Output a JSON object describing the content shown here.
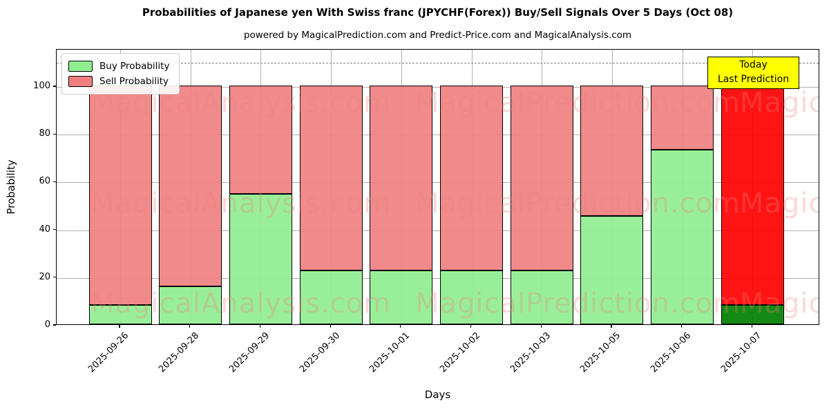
{
  "header": {
    "title": "Probabilities of Japanese yen With Swiss franc (JPYCHF(Forex)) Buy/Sell Signals Over 5 Days (Oct 08)",
    "subtitle": "powered by MagicalPrediction.com and Predict-Price.com and MagicalAnalysis.com"
  },
  "legend": {
    "items": [
      {
        "label": "Buy Probability",
        "color": "#90ee90"
      },
      {
        "label": "Sell Probability",
        "color": "#f08080"
      }
    ]
  },
  "annotation": {
    "line1": "Today",
    "line2": "Last Prediction",
    "bg_color": "#ffff00",
    "border_color": "#000000"
  },
  "watermarks": {
    "col1": "MagicalAnalysis.com",
    "col2": "MagicalPrediction.com"
  },
  "colors": {
    "buy": "#90ee90",
    "sell": "#f08080",
    "today_buy": "#008000",
    "today_sell": "#ff0000",
    "grid": "#b0b0b0",
    "dashed_line": "#7f7f7f",
    "bar_edge": "#000000"
  },
  "chart_data": {
    "type": "bar",
    "stacked": true,
    "title": "Probabilities of Japanese yen With Swiss franc (JPYCHF(Forex)) Buy/Sell Signals Over 5 Days (Oct 08)",
    "subtitle": "powered by MagicalPrediction.com and Predict-Price.com and MagicalAnalysis.com",
    "xlabel": "Days",
    "ylabel": "Probability",
    "categories": [
      "2025-09-26",
      "2025-09-28",
      "2025-09-29",
      "2025-09-30",
      "2025-10-01",
      "2025-10-02",
      "2025-10-03",
      "2025-10-05",
      "2025-10-06",
      "2025-10-07"
    ],
    "series": [
      {
        "name": "Buy Probability",
        "color": "#90ee90",
        "values": [
          8,
          16,
          54.5,
          22.5,
          22.5,
          22.5,
          22.5,
          45.5,
          73,
          8
        ]
      },
      {
        "name": "Sell Probability",
        "color": "#f08080",
        "values": [
          92,
          84,
          45.5,
          77.5,
          77.5,
          77.5,
          77.5,
          54.5,
          27,
          92
        ]
      }
    ],
    "ylim": [
      0,
      115.5
    ],
    "yticks": [
      0,
      20,
      40,
      60,
      80,
      100
    ],
    "grid": true,
    "grid_on_top": true,
    "legend_position": "upper left",
    "dashed_hline_y": 110,
    "today_index": 9,
    "today_colors": {
      "buy": "#008000",
      "sell": "#ff0000"
    },
    "today_annotation": "Today / Last Prediction"
  }
}
